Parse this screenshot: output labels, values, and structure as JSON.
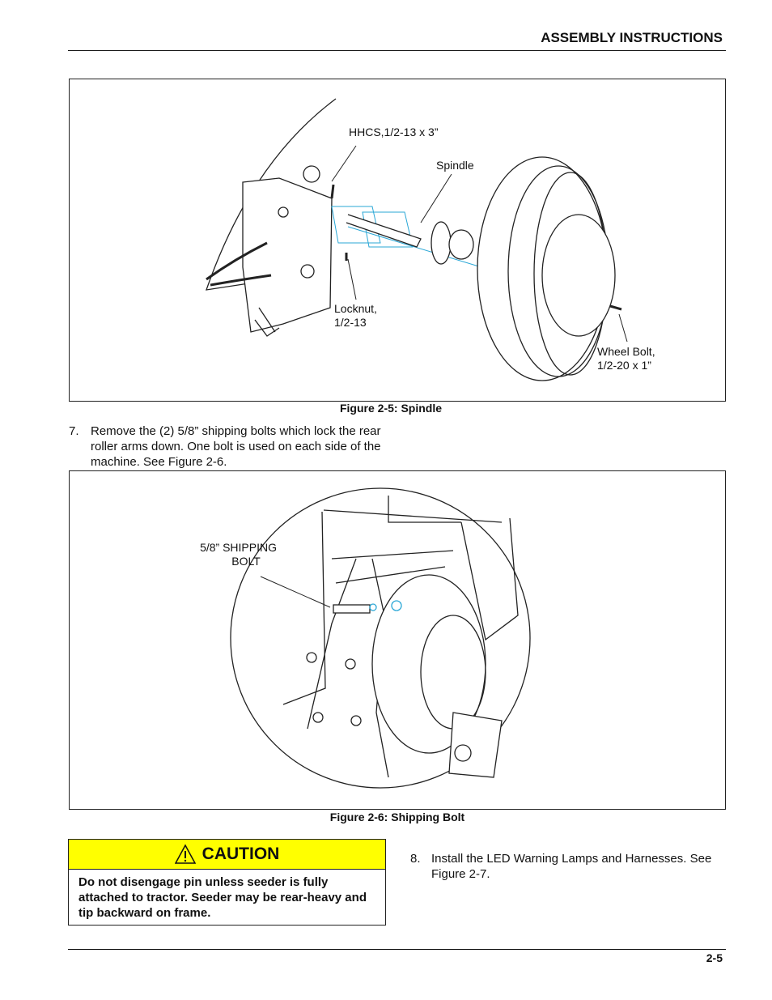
{
  "header": {
    "title": "ASSEMBLY INSTRUCTIONS"
  },
  "figures": [
    {
      "callouts": [
        [
          "HHCS,1/2-13 x 3”"
        ],
        [
          "Spindle"
        ],
        [
          "Locknut,",
          "1/2-13"
        ],
        [
          "Wheel Bolt,",
          "1/2-20 x 1”"
        ]
      ],
      "caption": "Figure 2-5:  Spindle"
    },
    {
      "callouts": [
        [
          "5/8” SHIPPING",
          "BOLT"
        ]
      ],
      "caption": "Figure 2-6:   Shipping Bolt"
    }
  ],
  "steps": [
    {
      "number": "7.",
      "text": "Remove the (2) 5/8” shipping bolts which lock the rear roller arms down. One bolt is used on each side of the machine. See Figure 2-6."
    },
    {
      "number": "8.",
      "text": "Install the LED Warning Lamps and Harnesses. See Figure 2-7."
    }
  ],
  "caution": {
    "title": "CAUTION",
    "text": "Do not disengage pin unless seeder is fully attached to tractor. Seeder may be rear-heavy and tip backward on frame."
  },
  "footer": {
    "page": "2-5"
  }
}
